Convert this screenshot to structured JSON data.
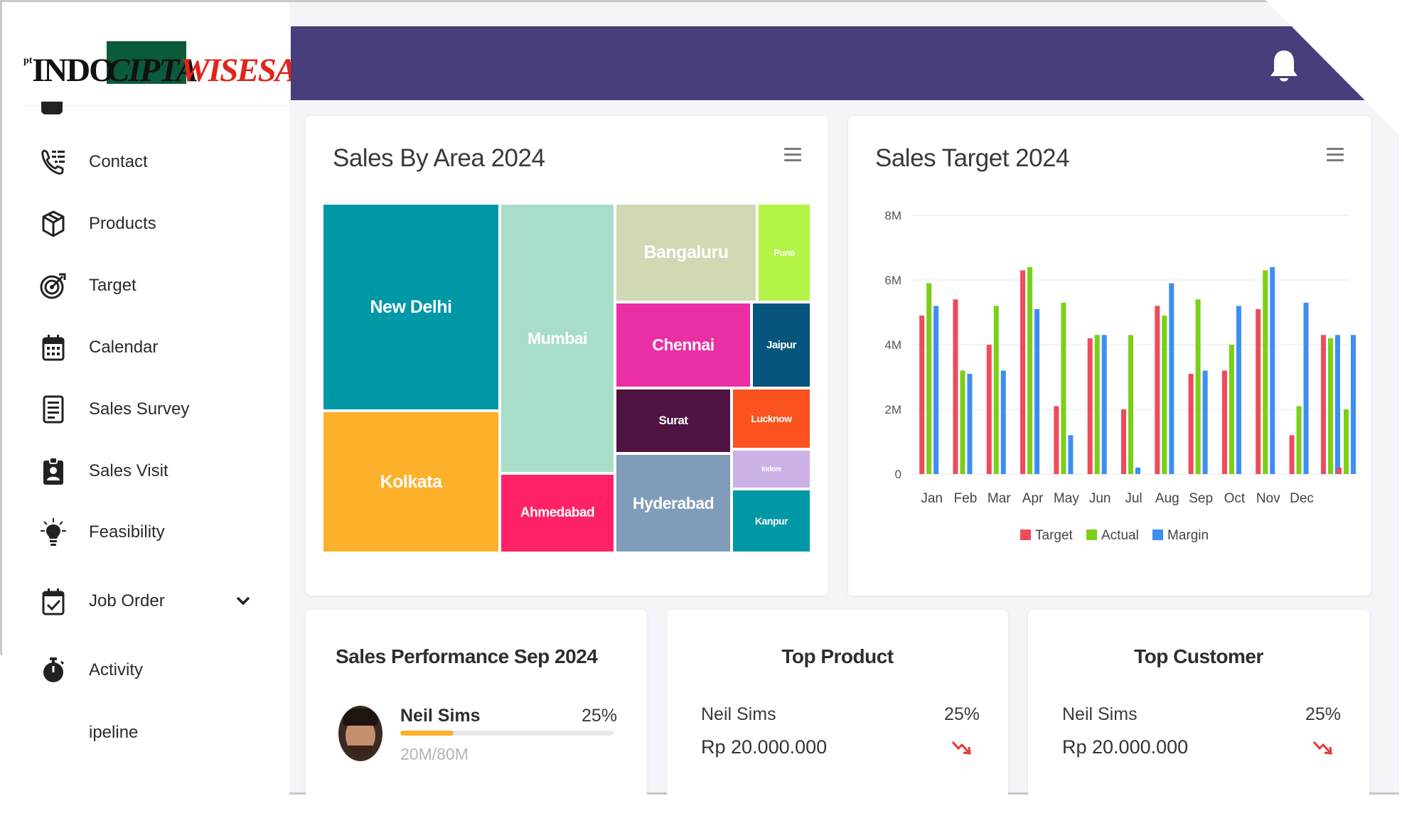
{
  "brand": {
    "pt": "pt",
    "part1": "INDO",
    "part2": "CIPTA",
    "part3": "WISESA"
  },
  "sidebar": {
    "items": [
      {
        "label": "Contact",
        "icon": "phone-list-icon"
      },
      {
        "label": "Products",
        "icon": "box-icon"
      },
      {
        "label": "Target",
        "icon": "target-icon"
      },
      {
        "label": "Calendar",
        "icon": "calendar-icon"
      },
      {
        "label": "Sales Survey",
        "icon": "document-icon"
      },
      {
        "label": "Sales Visit",
        "icon": "id-badge-icon"
      },
      {
        "label": "Feasibility",
        "icon": "lightbulb-icon"
      },
      {
        "label": "Job Order",
        "icon": "calendar-check-icon"
      },
      {
        "label": "Activity",
        "icon": "stopwatch-icon"
      },
      {
        "label": "ipeline",
        "icon": ""
      }
    ]
  },
  "treemap": {
    "title": "Sales By Area 2024",
    "tiles": [
      {
        "label": "New Delhi",
        "color": "#0097a7"
      },
      {
        "label": "Kolkata",
        "color": "#fdb02a"
      },
      {
        "label": "Mumbai",
        "color": "#a8dec9"
      },
      {
        "label": "Ahmedabad",
        "color": "#ff2266"
      },
      {
        "label": "Bangaluru",
        "color": "#cfd9b3"
      },
      {
        "label": "Pune",
        "color": "#b3f345"
      },
      {
        "label": "Chennai",
        "color": "#ea2ea4"
      },
      {
        "label": "Jaipur",
        "color": "#07547d"
      },
      {
        "label": "Surat",
        "color": "#4f1443"
      },
      {
        "label": "Lucknow",
        "color": "#fb5220"
      },
      {
        "label": "Hyderabad",
        "color": "#7f9cb8"
      },
      {
        "label": "Indore",
        "color": "#ccb1e6"
      },
      {
        "label": "Kanpur",
        "color": "#0097a7"
      }
    ]
  },
  "chart_data": {
    "type": "bar",
    "title": "Sales Target 2024",
    "categories": [
      "Jan",
      "Feb",
      "Mar",
      "Apr",
      "May",
      "Jun",
      "Jul",
      "Aug",
      "Sep",
      "Oct",
      "Nov",
      "Dec"
    ],
    "series": [
      {
        "name": "Target",
        "color": "#ef4b5c",
        "values": [
          4.9,
          5.4,
          4.0,
          6.3,
          2.1,
          4.2,
          2.0,
          5.2,
          3.1,
          3.2,
          5.1,
          1.2
        ]
      },
      {
        "name": "Actual",
        "color": "#79d017",
        "values": [
          5.9,
          3.2,
          5.2,
          6.4,
          5.3,
          4.3,
          4.3,
          4.9,
          5.4,
          4.0,
          6.3,
          2.1
        ]
      },
      {
        "name": "Margin",
        "color": "#3d8ef1",
        "values": [
          5.2,
          3.1,
          3.2,
          5.1,
          1.2,
          4.3,
          0.2,
          5.9,
          3.2,
          5.2,
          6.4,
          5.3
        ]
      }
    ],
    "extra_bars": [
      {
        "name": "Target",
        "color": "#ef4b5c",
        "values": [
          4.3,
          0.2
        ]
      },
      {
        "name": "Actual",
        "color": "#79d017",
        "values": [
          4.2,
          2.0
        ]
      },
      {
        "name": "Margin",
        "color": "#3d8ef1",
        "values": [
          4.3,
          4.3
        ]
      }
    ],
    "yticks": [
      "0",
      "2M",
      "4M",
      "6M",
      "8M"
    ],
    "ylim": [
      0,
      8
    ],
    "legend": [
      "Target",
      "Actual",
      "Margin"
    ]
  },
  "performance": {
    "title": "Sales Performance Sep 2024",
    "name": "Neil Sims",
    "percent": "25%",
    "progress": 0.25,
    "amount": "20M/80M"
  },
  "top_product": {
    "title": "Top Product",
    "name": "Neil Sims",
    "percent": "25%",
    "amount": "Rp 20.000.000"
  },
  "top_customer": {
    "title": "Top Customer",
    "name": "Neil Sims",
    "percent": "25%",
    "amount": "Rp 20.000.000"
  },
  "colors": {
    "header": "#473f7b",
    "trend_down": "#e53935",
    "progress": "#fdb02a"
  }
}
